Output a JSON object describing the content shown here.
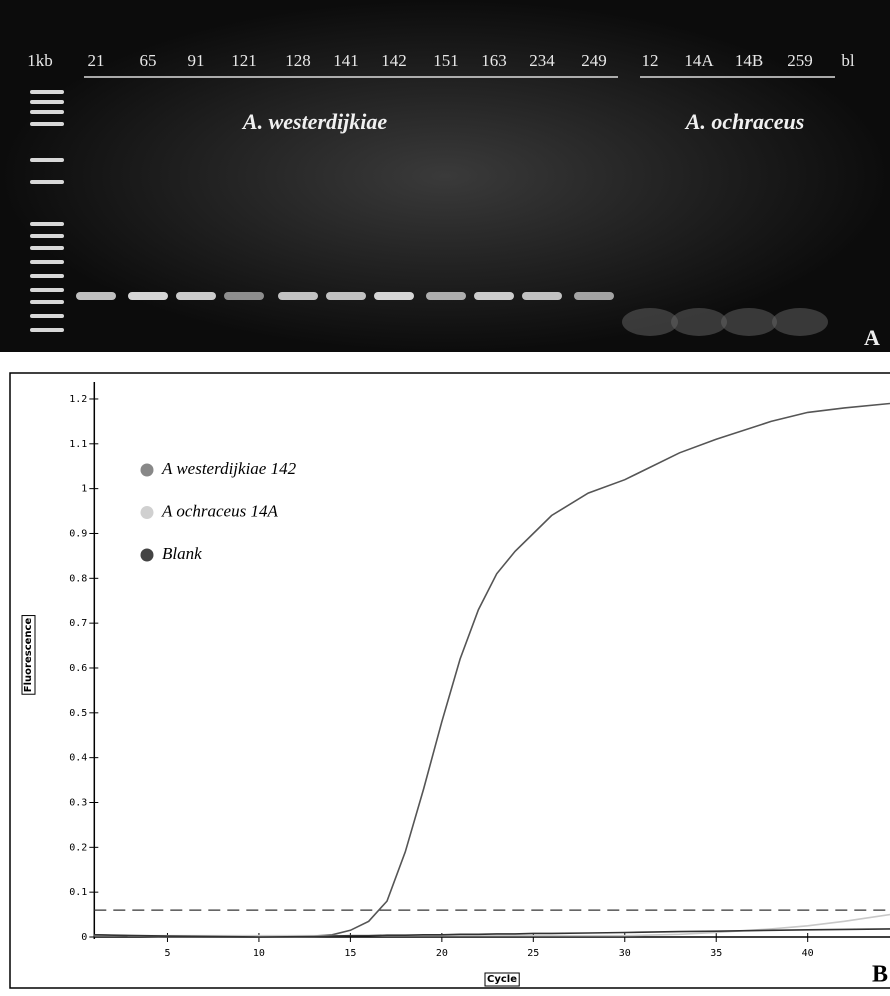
{
  "panel_a": {
    "lanes": [
      "1kb",
      "21",
      "65",
      "91",
      "121",
      "128",
      "141",
      "142",
      "151",
      "163",
      "234",
      "249",
      "12",
      "14A",
      "14B",
      "259",
      "bl"
    ],
    "groups": [
      "A. westerdijkiae",
      "A. ochraceus"
    ],
    "label": "A"
  },
  "chart_data": {
    "type": "line",
    "panel_label": "B",
    "x_label": "Cycle",
    "y_label": "Fluorescence",
    "x": [
      1,
      5,
      10,
      13,
      14,
      15,
      16,
      17,
      18,
      19,
      20,
      21,
      22,
      23,
      24,
      25,
      26,
      28,
      30,
      33,
      35,
      38,
      40,
      42,
      44.5
    ],
    "series": [
      {
        "name": "A westerdijkiae 142",
        "color": "#888888",
        "line_color": "#555555",
        "values": [
          0.005,
          0,
          0,
          0.002,
          0.005,
          0.015,
          0.035,
          0.08,
          0.19,
          0.33,
          0.48,
          0.62,
          0.73,
          0.81,
          0.86,
          0.9,
          0.94,
          0.99,
          1.02,
          1.08,
          1.11,
          1.15,
          1.17,
          1.18,
          1.19
        ]
      },
      {
        "name": "A ochraceus 14A",
        "color": "#d0d0d0",
        "line_color": "#c8c8c8",
        "values": [
          0.003,
          0.003,
          0.003,
          0.003,
          0.003,
          0.003,
          0.003,
          0.003,
          0.003,
          0.003,
          0.003,
          0.003,
          0.003,
          0.003,
          0.003,
          0.003,
          0.003,
          0.003,
          0.003,
          0.006,
          0.01,
          0.018,
          0.025,
          0.035,
          0.05
        ]
      },
      {
        "name": "Blank",
        "color": "#444444",
        "line_color": "#333333",
        "values": [
          0.005,
          0.002,
          0,
          0.001,
          0.002,
          0.003,
          0.003,
          0.004,
          0.004,
          0.005,
          0.005,
          0.006,
          0.006,
          0.007,
          0.007,
          0.008,
          0.008,
          0.009,
          0.01,
          0.012,
          0.013,
          0.015,
          0.016,
          0.017,
          0.018
        ]
      }
    ],
    "threshold": 0.06,
    "xlim": [
      1,
      44.5
    ],
    "ylim": [
      0,
      1.22
    ],
    "xticks": [
      5,
      10,
      15,
      20,
      25,
      30,
      35,
      40
    ],
    "yticks": [
      0,
      0.1,
      0.2,
      0.3,
      0.4,
      0.5,
      0.6,
      0.7,
      0.8,
      0.9,
      1,
      1.1,
      1.2
    ]
  }
}
